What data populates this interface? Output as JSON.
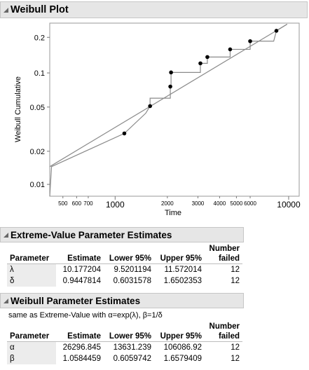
{
  "weibull_plot": {
    "title": "Weibull Plot",
    "chart_data": {
      "type": "scatter",
      "xscale": "log",
      "yscale": "weibull",
      "xlabel": "Time",
      "ylabel": "Weibull Cumulative",
      "xlim": [
        420,
        11500
      ],
      "ylim": [
        0.0078,
        0.26
      ],
      "x_ticks_small": [
        "500",
        "600",
        "700",
        "2000",
        "3000",
        "4000",
        "5000",
        "6000"
      ],
      "x_ticks_big": [
        "1000",
        "10000"
      ],
      "y_ticks": [
        "0.2",
        "0.1",
        "0.05",
        "0.02",
        "0.01"
      ],
      "points": [
        {
          "x": 1130,
          "y": 0.029
        },
        {
          "x": 1590,
          "y": 0.051
        },
        {
          "x": 2080,
          "y": 0.076
        },
        {
          "x": 2100,
          "y": 0.101
        },
        {
          "x": 3100,
          "y": 0.121
        },
        {
          "x": 3400,
          "y": 0.137
        },
        {
          "x": 4600,
          "y": 0.159
        },
        {
          "x": 6000,
          "y": 0.186
        },
        {
          "x": 8500,
          "y": 0.226
        }
      ],
      "fit_line": [
        {
          "x": 420,
          "y": 0.0145
        },
        {
          "x": 9800,
          "y": 0.255
        }
      ],
      "empirical_step": [
        {
          "x": 420,
          "y": 0.0078
        },
        {
          "x": 430,
          "y": 0.0145
        },
        {
          "x": 1130,
          "y": 0.029
        },
        {
          "x": 1500,
          "y": 0.044
        },
        {
          "x": 1590,
          "y": 0.051
        },
        {
          "x": 1590,
          "y": 0.06
        },
        {
          "x": 2080,
          "y": 0.06
        },
        {
          "x": 2080,
          "y": 0.076
        },
        {
          "x": 2100,
          "y": 0.076
        },
        {
          "x": 2100,
          "y": 0.101
        },
        {
          "x": 3100,
          "y": 0.101
        },
        {
          "x": 3100,
          "y": 0.121
        },
        {
          "x": 3400,
          "y": 0.121
        },
        {
          "x": 3400,
          "y": 0.137
        },
        {
          "x": 4600,
          "y": 0.137
        },
        {
          "x": 4600,
          "y": 0.159
        },
        {
          "x": 6000,
          "y": 0.159
        },
        {
          "x": 6000,
          "y": 0.186
        },
        {
          "x": 8200,
          "y": 0.186
        },
        {
          "x": 8500,
          "y": 0.226
        },
        {
          "x": 9800,
          "y": 0.255
        }
      ],
      "grid": false,
      "point_color": "#000000",
      "line_color": "#8a8a8a"
    }
  },
  "ev_section": {
    "title": "Extreme-Value Parameter Estimates",
    "columns": [
      "Parameter",
      "Estimate",
      "Lower 95%",
      "Upper 95%",
      "Number failed"
    ],
    "rows": [
      [
        "λ",
        "10.177204",
        "9.5201194",
        "11.572014",
        "12"
      ],
      [
        "δ",
        "0.9447814",
        "0.6031578",
        "1.6502353",
        "12"
      ]
    ]
  },
  "wb_section": {
    "title": "Weibull Parameter Estimates",
    "note": "same as Extreme-Value with α=exp(λ), β=1/δ",
    "columns": [
      "Parameter",
      "Estimate",
      "Lower 95%",
      "Upper 95%",
      "Number failed"
    ],
    "rows": [
      [
        "α",
        "26296.845",
        "13631.239",
        "106086.92",
        "12"
      ],
      [
        "β",
        "1.0584459",
        "0.6059742",
        "1.6579409",
        "12"
      ]
    ]
  },
  "colors": {
    "header_bg": "#e6e6e6",
    "header_border": "#c6c6c6",
    "param_col_bg": "#ececec"
  },
  "icons": {
    "disclosure": "disclosure-triangle-icon"
  }
}
